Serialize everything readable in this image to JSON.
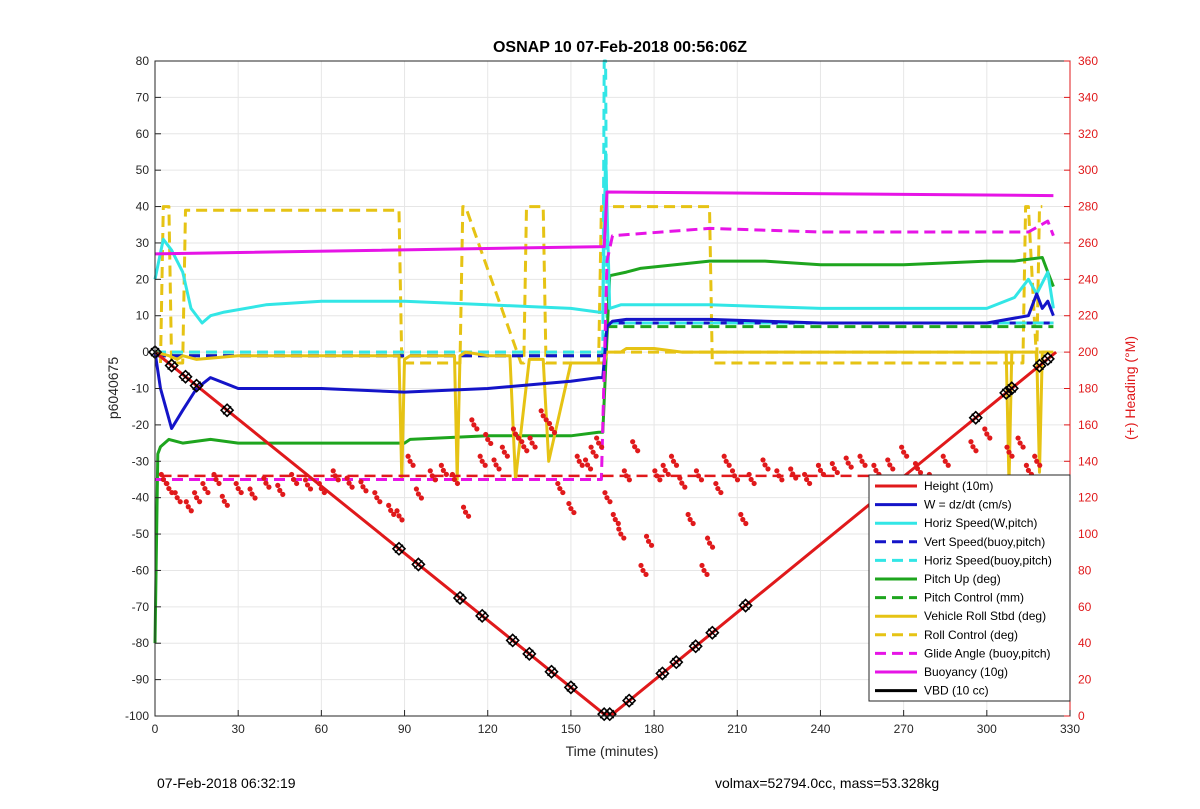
{
  "figure": {
    "footer_left": "07-Feb-2018 06:32:19",
    "footer_right": "volmax=52794.0cc, mass=53.328kg"
  },
  "chart_data": {
    "type": "line",
    "title": "OSNAP 10 07-Feb-2018 00:56:06Z",
    "xlabel": "Time (minutes)",
    "ylabel_left": "p6040675",
    "ylabel_right": "(+) Heading (°M)",
    "xlim": [
      0,
      330
    ],
    "ylim_left": [
      -100,
      80
    ],
    "ylim_right": [
      0,
      360
    ],
    "xticks": [
      0,
      30,
      60,
      90,
      120,
      150,
      180,
      210,
      240,
      270,
      300,
      330
    ],
    "yticks_left": [
      -100,
      -90,
      -80,
      -70,
      -60,
      -50,
      -40,
      -30,
      -20,
      -10,
      0,
      10,
      20,
      30,
      40,
      50,
      60,
      70,
      80
    ],
    "yticks_right": [
      0,
      20,
      40,
      60,
      80,
      100,
      120,
      140,
      160,
      180,
      200,
      220,
      240,
      260,
      280,
      300,
      320,
      340,
      360
    ],
    "grid": true,
    "legend_position": "bottom-right",
    "colors": {
      "red": "#e0191b",
      "blue": "#1414c8",
      "cyan": "#32e6e6",
      "green": "#1ea51e",
      "yellow": "#e6c314",
      "magenta": "#e614e6",
      "black": "#000000",
      "right_axis": "#e0191b"
    },
    "series": [
      {
        "name": "Height (10m)",
        "color": "#e0191b",
        "style": "solid",
        "x": [
          0,
          162,
          165,
          325
        ],
        "y": [
          0,
          -99.5,
          -99.5,
          0
        ]
      },
      {
        "name": "W = dz/dt (cm/s)",
        "color": "#1414c8",
        "style": "solid",
        "x": [
          0,
          2,
          6,
          10,
          15,
          20,
          30,
          60,
          90,
          120,
          150,
          160,
          161.5,
          163,
          165,
          170,
          200,
          240,
          270,
          300,
          315,
          318,
          320,
          322,
          324
        ],
        "y": [
          0,
          -10,
          -21,
          -16,
          -10,
          -7,
          -10,
          -10,
          -11,
          -10,
          -8,
          -7,
          -7,
          7,
          8.5,
          9,
          9,
          8,
          8,
          8,
          10,
          16,
          12,
          14,
          10
        ]
      },
      {
        "name": "Horiz Speed(W,pitch)",
        "color": "#32e6e6",
        "style": "solid",
        "x": [
          0,
          3,
          6,
          10,
          13,
          17,
          20,
          25,
          40,
          60,
          90,
          120,
          150,
          160,
          161.5,
          162.5,
          164,
          168,
          200,
          240,
          270,
          300,
          310,
          315,
          318,
          322,
          324
        ],
        "y": [
          20,
          31,
          28,
          22,
          12,
          8,
          10,
          11,
          13,
          14,
          14,
          13,
          12,
          11,
          11,
          55,
          12,
          13,
          13,
          12,
          12,
          12,
          15,
          20,
          16,
          22,
          12
        ]
      },
      {
        "name": "Vert Speed(buoy,pitch)",
        "color": "#1414c8",
        "style": "dashed",
        "x": [
          0,
          162,
          163,
          324
        ],
        "y": [
          -1,
          -1,
          8,
          8
        ]
      },
      {
        "name": "Horiz Speed(buoy,pitch)",
        "color": "#32e6e6",
        "style": "dashed",
        "x": [
          0,
          161.5,
          162,
          162.5,
          163,
          324
        ],
        "y": [
          0,
          0,
          80,
          80,
          8,
          8
        ]
      },
      {
        "name": "Pitch Up (deg)",
        "color": "#1ea51e",
        "style": "solid",
        "x": [
          0,
          1,
          2,
          5,
          10,
          20,
          30,
          60,
          90,
          92,
          120,
          150,
          160,
          161.5,
          164,
          170,
          175,
          200,
          220,
          240,
          270,
          300,
          310,
          320,
          322,
          324
        ],
        "y": [
          -80,
          -28,
          -26,
          -24,
          -25,
          -24,
          -25,
          -25,
          -25,
          -24,
          -23,
          -23,
          -22,
          -22,
          21,
          22,
          23,
          25,
          25,
          24,
          24,
          25,
          25,
          26,
          22,
          18
        ]
      },
      {
        "name": "Pitch Control (mm)",
        "color": "#1ea51e",
        "style": "dashed",
        "x": [
          0,
          161,
          162,
          163,
          324
        ],
        "y": [
          -1,
          -1,
          0,
          7,
          7
        ]
      },
      {
        "name": "Vehicle Roll Stbd (deg)",
        "color": "#e6c314",
        "style": "solid",
        "x": [
          0,
          5,
          8,
          10,
          15,
          30,
          88,
          89,
          90,
          92,
          108,
          109,
          110,
          112,
          120,
          128,
          130,
          135,
          140,
          142,
          150,
          160,
          162,
          163,
          168,
          170,
          180,
          190,
          200,
          210,
          213,
          214,
          240,
          270,
          300,
          307,
          308,
          309,
          318,
          319,
          320,
          324
        ],
        "y": [
          0,
          -1,
          -2,
          -1,
          -2,
          -1,
          -1,
          -35,
          -2,
          -1,
          -1,
          -35,
          -1,
          0,
          -1,
          -1,
          -35,
          -2,
          -2,
          -30,
          -3,
          -3,
          -3,
          0,
          0,
          1,
          1,
          0,
          0,
          0,
          0,
          0,
          0,
          0,
          0,
          0,
          -36,
          0,
          0,
          -33,
          0,
          0
        ]
      },
      {
        "name": "Roll Control (deg)",
        "color": "#e6c314",
        "style": "dashed",
        "x": [
          0,
          324
        ],
        "y": [
          0,
          0
        ]
      },
      {
        "name": "Glide Angle (buoy,pitch)",
        "color": "#e614e6",
        "style": "dashed",
        "x": [
          0,
          161,
          163,
          165,
          200,
          240,
          270,
          300,
          315,
          322,
          324
        ],
        "y": [
          -35,
          -35,
          25,
          32,
          34,
          33,
          33,
          33,
          33,
          36,
          32
        ]
      },
      {
        "name": "Buoyancy (10g)",
        "color": "#e614e6",
        "style": "solid",
        "x": [
          0,
          162,
          163,
          324
        ],
        "y": [
          27,
          29,
          44,
          43
        ]
      },
      {
        "name": "VBD (10 cc)",
        "color": "#000000",
        "style": "solid",
        "x": [
          0,
          1,
          160,
          161,
          163,
          164,
          324
        ],
        "y": [
          0,
          -7,
          -7,
          -6,
          8,
          8,
          8
        ]
      }
    ],
    "extra_traces": [
      {
        "description": "Roll control targets",
        "color": "#e6c314",
        "style": "dashed",
        "x": [
          2,
          3,
          5,
          6,
          10,
          11,
          88,
          89,
          90,
          110,
          111,
          112,
          132,
          133,
          134,
          140,
          141,
          142,
          160,
          161,
          162,
          200,
          201,
          202,
          313,
          314,
          315,
          318,
          319,
          320
        ],
        "y": [
          -3,
          40,
          40,
          -3,
          -3,
          39,
          39,
          -3,
          -3,
          -3,
          40,
          40,
          -3,
          -3,
          40,
          40,
          -3,
          -3,
          -3,
          40,
          40,
          40,
          -3,
          -3,
          -3,
          40,
          40,
          -3,
          40,
          40
        ]
      }
    ],
    "heading_scatter": {
      "name": "Heading (°M)",
      "axis": "right",
      "color": "#e0191b",
      "style": "dots",
      "reference_heading": 132,
      "x": [
        3,
        5,
        8,
        12,
        15,
        18,
        22,
        25,
        30,
        35,
        40,
        45,
        50,
        55,
        60,
        65,
        70,
        75,
        80,
        85,
        88,
        92,
        95,
        100,
        104,
        108,
        112,
        115,
        118,
        120,
        123,
        126,
        130,
        133,
        136,
        140,
        143,
        146,
        150,
        153,
        156,
        158,
        160,
        163,
        166,
        168,
        170,
        173,
        176,
        178,
        181,
        184,
        187,
        190,
        193,
        196,
        198,
        200,
        203,
        206,
        209,
        212,
        215,
        220,
        225,
        230,
        235,
        240,
        245,
        250,
        255,
        260,
        265,
        270,
        275,
        280,
        285,
        290,
        295,
        300,
        305,
        308,
        312,
        315,
        318,
        322,
        324
      ],
      "y": [
        130,
        125,
        120,
        115,
        120,
        125,
        130,
        118,
        125,
        122,
        128,
        124,
        130,
        127,
        125,
        132,
        128,
        126,
        120,
        113,
        110,
        140,
        122,
        132,
        135,
        130,
        112,
        160,
        140,
        152,
        138,
        145,
        155,
        148,
        150,
        165,
        158,
        125,
        114,
        140,
        138,
        145,
        150,
        120,
        108,
        100,
        132,
        148,
        80,
        96,
        132,
        135,
        140,
        128,
        108,
        132,
        80,
        95,
        125,
        140,
        132,
        108,
        130,
        138,
        132,
        133,
        130,
        135,
        136,
        139,
        140,
        135,
        138,
        145,
        136,
        130,
        140,
        125,
        148,
        155,
        120,
        145,
        150,
        135,
        140,
        122,
        104
      ]
    },
    "markers": {
      "description": "dive markers along height profile",
      "style": "black-diamond-x",
      "x": [
        0,
        6,
        11,
        15,
        26,
        88,
        95,
        110,
        118,
        129,
        135,
        143,
        150,
        162,
        164,
        171,
        183,
        188,
        195,
        201,
        213,
        296,
        307,
        309,
        319,
        322
      ]
    }
  }
}
